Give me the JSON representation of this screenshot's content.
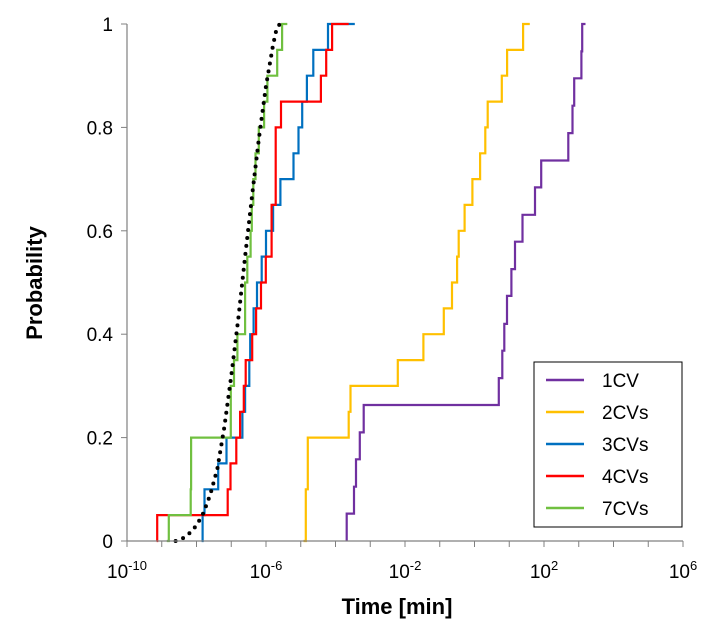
{
  "chart_data": {
    "type": "line",
    "title": "",
    "xlabel": "Time [min]",
    "ylabel": "Probability",
    "x_scale": "log",
    "xlim": [
      1e-10,
      1000000
    ],
    "ylim": [
      0,
      1
    ],
    "x_ticks": [
      {
        "base": "10",
        "exp": "-10",
        "value": 1e-10
      },
      {
        "base": "10",
        "exp": "-6",
        "value": 1e-06
      },
      {
        "base": "10",
        "exp": "-2",
        "value": 0.01
      },
      {
        "base": "10",
        "exp": "2",
        "value": 100
      },
      {
        "base": "10",
        "exp": "6",
        "value": 1000000
      }
    ],
    "y_ticks": [
      "0",
      "0.2",
      "0.4",
      "0.6",
      "0.8",
      "1"
    ],
    "grid": false,
    "legend_position": "bottom-right",
    "series": [
      {
        "name": "1CV",
        "color": "#7030A0",
        "style": "step",
        "x": [
          0.00021,
          0.00021,
          0.00034,
          0.00039,
          0.0005,
          0.00065,
          0.00097,
          0.0014,
          0.0015,
          0.0021,
          2.95,
          5.0,
          6.3,
          7.2,
          8.6,
          11.5,
          14.6,
          17.4,
          24.0,
          55,
          83,
          141,
          150,
          199,
          300,
          501,
          660,
          741,
          1190,
          1260,
          1560
        ],
        "y": [
          0.0,
          0.053,
          0.105,
          0.158,
          0.21,
          0.263,
          0.263,
          0.263,
          0.263,
          0.263,
          0.263,
          0.315,
          0.368,
          0.42,
          0.474,
          0.526,
          0.579,
          0.579,
          0.631,
          0.684,
          0.736,
          0.736,
          0.736,
          0.736,
          0.736,
          0.789,
          0.842,
          0.895,
          0.947,
          1.0,
          1.0
        ]
      },
      {
        "name": "2CVs",
        "color": "#FFC000",
        "style": "step",
        "x": [
          1.2e-05,
          1.4e-05,
          1.6e-05,
          0.00024,
          0.00027,
          0.00029,
          0.00055,
          0.0062,
          0.0339,
          0.131,
          0.225,
          0.316,
          0.351,
          0.52,
          0.87,
          1.45,
          2.05,
          2.4,
          2.7,
          3.1,
          4.4,
          6.1,
          8.7,
          10.0,
          13.9,
          25.0,
          30.5,
          39.1
        ],
        "y": [
          0.0,
          0.1,
          0.2,
          0.25,
          0.3,
          0.3,
          0.3,
          0.35,
          0.4,
          0.45,
          0.5,
          0.55,
          0.6,
          0.65,
          0.7,
          0.75,
          0.8,
          0.85,
          0.85,
          0.85,
          0.85,
          0.9,
          0.95,
          0.95,
          0.95,
          1.0,
          1.0,
          1.0
        ]
      },
      {
        "name": "3CVs",
        "color": "#0070C0",
        "style": "step",
        "x": [
          1.4e-08,
          1.5e-08,
          1.7e-08,
          3e-08,
          4.2e-08,
          6e-08,
          6.6e-08,
          7.3e-08,
          7.7e-08,
          1.06e-07,
          1.5e-07,
          2.1e-07,
          2.5e-07,
          3.3e-07,
          3.5e-07,
          4.4e-07,
          5.5e-07,
          7.5e-07,
          1e-06,
          1.6e-06,
          2.6e-06,
          2.9e-06,
          4.2e-06,
          6.2e-06,
          8.6e-06,
          1.1e-05,
          1.5e-05,
          2.3e-05,
          4e-05,
          6.1e-05,
          8.9e-05,
          0.00014,
          0.0002,
          0.0003,
          0.00036
        ],
        "y": [
          0.0,
          0.05,
          0.1,
          0.1,
          0.15,
          0.15,
          0.15,
          0.2,
          0.2,
          0.2,
          0.2,
          0.25,
          0.3,
          0.35,
          0.4,
          0.45,
          0.5,
          0.55,
          0.6,
          0.65,
          0.7,
          0.7,
          0.7,
          0.75,
          0.8,
          0.85,
          0.9,
          0.95,
          0.95,
          1.0,
          1.0,
          1.0,
          1.0,
          1.0,
          1.0
        ]
      },
      {
        "name": "4CVs",
        "color": "#FF0000",
        "style": "step",
        "x": [
          7.1e-10,
          7.4e-10,
          1.1e-09,
          6e-08,
          7.9e-08,
          9.5e-08,
          1.4e-07,
          1.8e-07,
          2.3e-07,
          2.6e-07,
          4e-07,
          5.2e-07,
          7.2e-07,
          9.9e-07,
          1.45e-06,
          1.9e-06,
          2.7e-06,
          1e-05,
          3.8e-05,
          5.4e-05,
          8e-05,
          0.00012,
          0.00018,
          0.00024
        ],
        "y": [
          0.0,
          0.05,
          0.05,
          0.05,
          0.1,
          0.15,
          0.2,
          0.25,
          0.3,
          0.35,
          0.4,
          0.45,
          0.5,
          0.55,
          0.65,
          0.8,
          0.85,
          0.85,
          0.9,
          0.95,
          1.0,
          1.0,
          1.0,
          1.0
        ]
      },
      {
        "name": "7CVs",
        "color": "#70C040",
        "style": "step",
        "x": [
          1.4e-09,
          1.6e-09,
          6.1e-09,
          6.8e-09,
          7e-09,
          3e-08,
          7.1e-08,
          9.7e-08,
          1.2e-07,
          1.5e-07,
          2.5e-07,
          2.9e-07,
          3.6e-07,
          3.9e-07,
          4.3e-07,
          5e-07,
          6.2e-07,
          8.8e-07,
          1.1e-06,
          2.1e-06,
          2.9e-06,
          3.3e-06,
          4.1e-06
        ],
        "y": [
          0.0,
          0.05,
          0.05,
          0.1,
          0.2,
          0.2,
          0.2,
          0.3,
          0.35,
          0.4,
          0.5,
          0.55,
          0.6,
          0.65,
          0.7,
          0.75,
          0.8,
          0.85,
          0.9,
          0.95,
          1.0,
          1.0,
          1.0
        ]
      },
      {
        "name": "",
        "color": "#000000",
        "style": "dotted",
        "x": [
          2.5e-09,
          4e-09,
          6.3e-09,
          1e-08,
          1.6e-08,
          2.5e-08,
          4e-08,
          6.3e-08,
          1e-07,
          1.6e-07,
          2.5e-07,
          4e-07,
          6.3e-07,
          1e-06,
          1.6e-06,
          2e-06,
          2.5e-06
        ],
        "y": [
          0.0,
          0.005,
          0.015,
          0.03,
          0.055,
          0.09,
          0.14,
          0.22,
          0.32,
          0.43,
          0.55,
          0.67,
          0.78,
          0.88,
          0.96,
          0.99,
          1.0
        ]
      }
    ]
  }
}
